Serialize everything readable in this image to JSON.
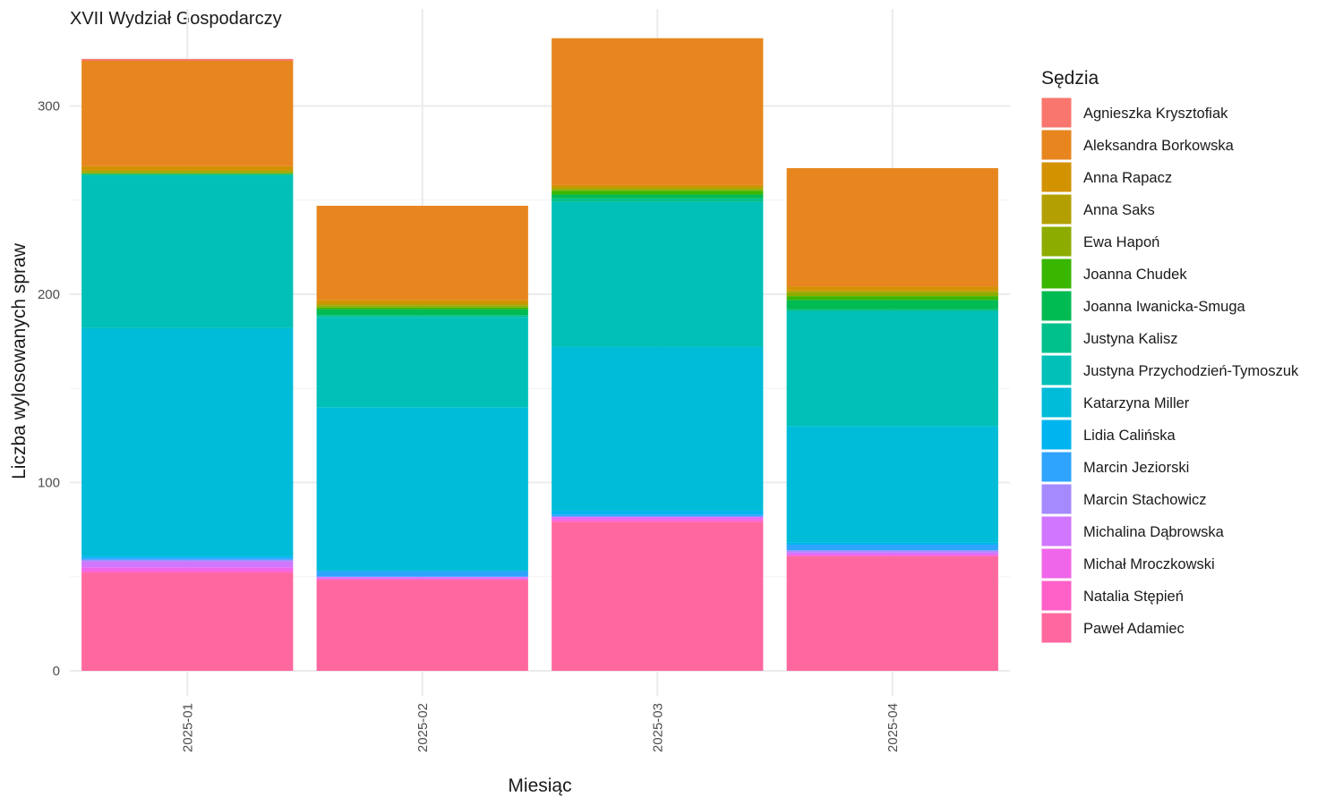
{
  "chart_data": {
    "type": "bar",
    "stacked": true,
    "title": "XVII Wydział Gospodarczy",
    "xlabel": "Miesiąc",
    "ylabel": "Liczba wylosowanych spraw",
    "ylim": [
      0,
      337
    ],
    "yticks": [
      0,
      100,
      200,
      300
    ],
    "grid": true,
    "legend_title": "Sędzia",
    "legend_position": "right",
    "categories": [
      "2025-01",
      "2025-02",
      "2025-03",
      "2025-04"
    ],
    "series": [
      {
        "name": "Paweł Adamiec",
        "color": "#FF689F",
        "values": [
          52,
          48,
          79,
          61
        ]
      },
      {
        "name": "Natalia Stępień",
        "color": "#FF61C9",
        "values": [
          1,
          1,
          1,
          0
        ]
      },
      {
        "name": "Michał Mroczkowski",
        "color": "#F066EA",
        "values": [
          2,
          0,
          1,
          1
        ]
      },
      {
        "name": "Michalina Dąbrowska",
        "color": "#D176FF",
        "values": [
          3,
          1,
          1,
          1
        ]
      },
      {
        "name": "Marcin Stachowicz",
        "color": "#A58AFF",
        "values": [
          1,
          0,
          0,
          1
        ]
      },
      {
        "name": "Marcin Jeziorski",
        "color": "#2FA4FF",
        "values": [
          1,
          3,
          1,
          3
        ]
      },
      {
        "name": "Lidia Calińska",
        "color": "#00B4EF",
        "values": [
          1,
          0,
          2,
          1
        ]
      },
      {
        "name": "Katarzyna Miller",
        "color": "#00BCD8",
        "values": [
          121,
          87,
          87,
          62
        ]
      },
      {
        "name": "Justyna Przychodzień-Tymoszuk",
        "color": "#00C0B7",
        "values": [
          81,
          48,
          77,
          61
        ]
      },
      {
        "name": "Justyna Kalisz",
        "color": "#00C08B",
        "values": [
          1,
          1,
          2,
          1
        ]
      },
      {
        "name": "Joanna Iwanicka-Smuga",
        "color": "#00BA52",
        "values": [
          0,
          3,
          2,
          5
        ]
      },
      {
        "name": "Joanna Chudek",
        "color": "#39B600",
        "values": [
          0,
          1,
          2,
          2
        ]
      },
      {
        "name": "Ewa Hapoń",
        "color": "#8DAC00",
        "values": [
          1,
          1,
          1,
          2
        ]
      },
      {
        "name": "Anna Saks",
        "color": "#B3A000",
        "values": [
          1,
          1,
          1,
          1
        ]
      },
      {
        "name": "Anna Rapacz",
        "color": "#D39200",
        "values": [
          2,
          2,
          1,
          2
        ]
      },
      {
        "name": "Aleksandra Borkowska",
        "color": "#E7861F",
        "values": [
          56,
          50,
          78,
          63
        ]
      },
      {
        "name": "Agnieszka Krysztofiak",
        "color": "#F8766D",
        "values": [
          1,
          0,
          0,
          0
        ]
      }
    ]
  }
}
